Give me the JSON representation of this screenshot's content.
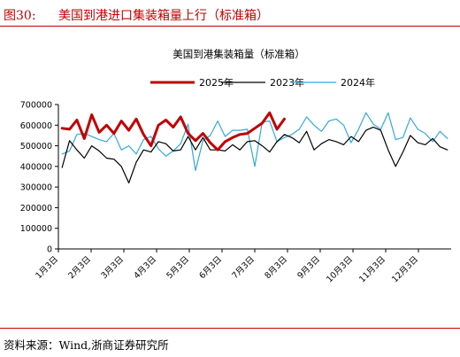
{
  "header": {
    "figure_no": "图30:",
    "title": "美国到港进口集装箱量上行（标准箱）"
  },
  "footer": {
    "source": "资料来源：Wind,浙商证券研究所"
  },
  "chart_data": {
    "type": "line",
    "title": "美国到港集装箱量（标准箱）",
    "xlabel": "",
    "ylabel": "",
    "ylim": [
      0,
      700000
    ],
    "yticks": [
      0,
      100000,
      200000,
      300000,
      400000,
      500000,
      600000,
      700000
    ],
    "ytick_labels": [
      "0",
      "100000",
      "200000",
      "300000",
      "400000",
      "500000",
      "600000",
      "700000"
    ],
    "xticks": [
      "1月3日",
      "2月3日",
      "3月3日",
      "4月3日",
      "5月3日",
      "6月3日",
      "7月3日",
      "8月3日",
      "9月3日",
      "10月3日",
      "11月3日",
      "12月3日"
    ],
    "weeks_per_year": 53,
    "grid": false,
    "legend": "top-center",
    "series": [
      {
        "name": "2025年",
        "color": "#c00000",
        "values": [
          585000,
          580000,
          625000,
          535000,
          650000,
          565000,
          600000,
          560000,
          620000,
          575000,
          630000,
          555000,
          500000,
          600000,
          625000,
          590000,
          640000,
          560000,
          525000,
          560000,
          515000,
          480000,
          520000,
          540000,
          555000,
          560000,
          585000,
          610000,
          660000,
          580000,
          630000
        ]
      },
      {
        "name": "2023年",
        "color": "#000000",
        "values": [
          395000,
          525000,
          480000,
          440000,
          500000,
          475000,
          440000,
          435000,
          400000,
          320000,
          420000,
          480000,
          470000,
          520000,
          510000,
          475000,
          480000,
          545000,
          480000,
          540000,
          480000,
          480000,
          475000,
          505000,
          480000,
          520000,
          525000,
          500000,
          470000,
          520000,
          555000,
          540000,
          515000,
          570000,
          480000,
          510000,
          530000,
          520000,
          505000,
          545000,
          520000,
          575000,
          590000,
          575000,
          480000,
          400000,
          470000,
          550000,
          515000,
          505000,
          535000,
          495000,
          480000
        ]
      },
      {
        "name": "2024年",
        "color": "#33a8e0",
        "values": [
          460000,
          475000,
          555000,
          560000,
          545000,
          530000,
          520000,
          560000,
          480000,
          500000,
          460000,
          530000,
          545000,
          485000,
          450000,
          475000,
          510000,
          605000,
          380000,
          525000,
          550000,
          620000,
          545000,
          575000,
          575000,
          580000,
          400000,
          615000,
          620000,
          520000,
          540000,
          555000,
          580000,
          640000,
          600000,
          570000,
          620000,
          630000,
          600000,
          515000,
          580000,
          660000,
          605000,
          580000,
          660000,
          530000,
          540000,
          635000,
          580000,
          560000,
          520000,
          570000,
          535000
        ]
      }
    ]
  }
}
